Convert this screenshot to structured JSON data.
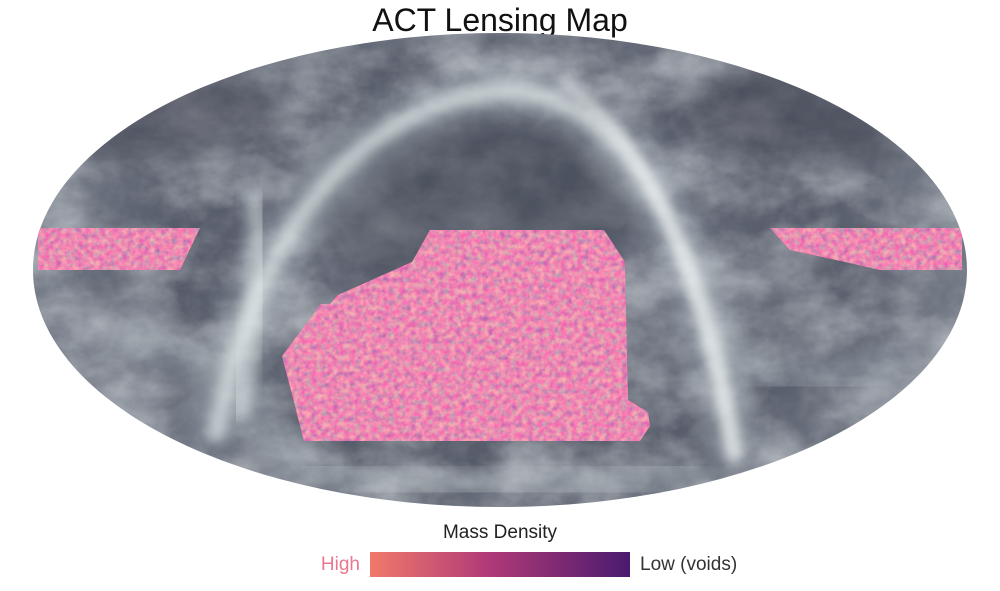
{
  "title": "ACT Lensing Map",
  "legend": {
    "title": "Mass Density",
    "high_label": "High",
    "low_label": "Low (voids)",
    "high_color": "#f07a6a",
    "mid_color": "#b23a78",
    "low_color": "#4a1a6e"
  },
  "map": {
    "projection": "Mollweide",
    "background_sky_color": "#4f5362",
    "dust_color": "#e6f0f0",
    "lensing_colors": [
      "#f0746a",
      "#e0566c",
      "#c83a6e",
      "#a63278",
      "#7a2a7a",
      "#5a1c6e"
    ]
  }
}
